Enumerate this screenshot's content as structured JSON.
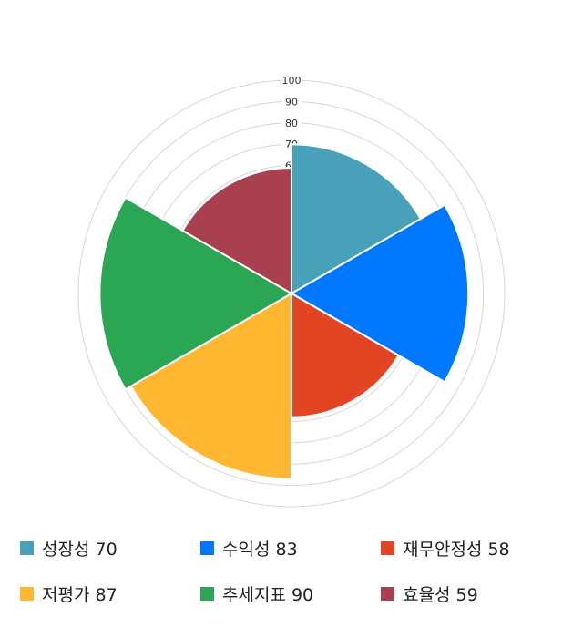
{
  "chart_data": {
    "type": "polar-area",
    "categories": [
      "성장성",
      "수익성",
      "재무안정성",
      "저평가",
      "추세지표",
      "효율성"
    ],
    "values": [
      70,
      83,
      58,
      87,
      90,
      59
    ],
    "colors": [
      "#48a1b9",
      "#0077ff",
      "#e34524",
      "#ffb732",
      "#2ba655",
      "#a8404f"
    ],
    "rlim": [
      0,
      100
    ],
    "ticks": [
      10,
      20,
      30,
      40,
      50,
      60,
      70,
      80,
      90,
      100
    ],
    "legend_position": "bottom",
    "legend": [
      "성장성 70",
      "수익성 83",
      "재무안정성 58",
      "저평가 87",
      "추세지표 90",
      "효율성 59"
    ]
  }
}
